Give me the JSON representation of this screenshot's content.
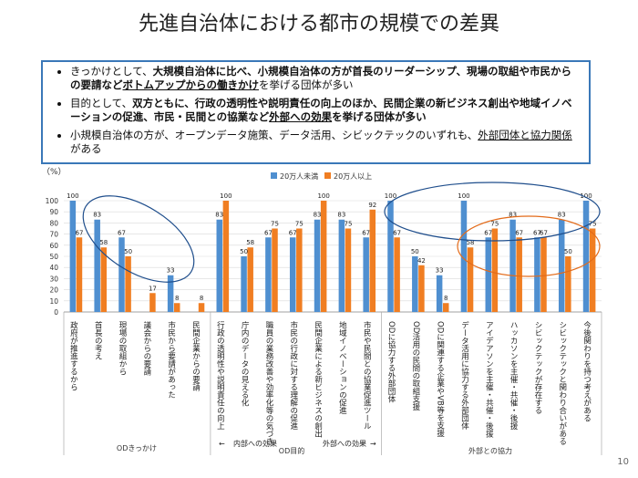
{
  "page": {
    "title": "先進自治体における都市の規模での差異",
    "page_number": "10"
  },
  "summary": {
    "items": [
      {
        "parts": [
          {
            "text": "きっかけとして、",
            "style": ""
          },
          {
            "text": "大規模自治体に比べ、小規模自治体の方が首長のリーダーシップ、現場の取組や市民からの要請など",
            "style": "b"
          },
          {
            "text": "ボトムアップからの働きかけ",
            "style": "b u"
          },
          {
            "text": "を挙げる団体が多い",
            "style": ""
          }
        ]
      },
      {
        "parts": [
          {
            "text": "目的として、",
            "style": ""
          },
          {
            "text": "双方ともに、行政の透明性や説明責任の向上のほか、民間企業の新ビジネス創出や地域イノベーションの促進、市民・民間との協業など",
            "style": "b"
          },
          {
            "text": "外部への効果",
            "style": "b u"
          },
          {
            "text": "を挙げる団体が多い",
            "style": "b"
          }
        ]
      },
      {
        "parts": [
          {
            "text": "小規模自治体の方が、オープンデータ施策、データ活用、シビックテックのいずれも、",
            "style": ""
          },
          {
            "text": "外部団体と協力関係",
            "style": "u"
          },
          {
            "text": "がある",
            "style": ""
          }
        ]
      }
    ]
  },
  "chart_data": {
    "type": "bar",
    "y_unit_label": "（%）",
    "ylim": [
      0,
      100
    ],
    "yticks": [
      "0",
      "10",
      "20",
      "30",
      "40",
      "50",
      "60",
      "70",
      "80",
      "90",
      "100"
    ],
    "grid": true,
    "legend_position": "top-center",
    "colors": {
      "small": "#4f8fd0",
      "large": "#f07e22",
      "blue_ellipse": "#1f4e8c",
      "orange_ellipse": "#e36b1a"
    },
    "series": [
      {
        "name": "20万人未満",
        "values": [
          100,
          83,
          67,
          0,
          33,
          0,
          83,
          50,
          67,
          67,
          83,
          83,
          67,
          100,
          50,
          33,
          100,
          67,
          83,
          67,
          83,
          100
        ]
      },
      {
        "name": "20万人以上",
        "values": [
          67,
          58,
          50,
          17,
          8,
          8,
          100,
          58,
          75,
          75,
          100,
          75,
          92,
          67,
          42,
          8,
          58,
          75,
          67,
          67,
          50,
          75
        ]
      }
    ],
    "value_labels": [
      [
        "100",
        "67"
      ],
      [
        "83",
        "58"
      ],
      [
        "67",
        "50"
      ],
      [
        "",
        "17"
      ],
      [
        "33",
        "8"
      ],
      [
        "",
        "8"
      ],
      [
        "83",
        "100"
      ],
      [
        "50",
        "58"
      ],
      [
        "67",
        "75"
      ],
      [
        "67",
        "75"
      ],
      [
        "83",
        "100"
      ],
      [
        "83",
        "75"
      ],
      [
        "67",
        "92"
      ],
      [
        "100",
        "67"
      ],
      [
        "50",
        "42"
      ],
      [
        "33",
        "8"
      ],
      [
        "100",
        "58"
      ],
      [
        "67",
        "75"
      ],
      [
        "83",
        "67"
      ],
      [
        "67",
        "67"
      ],
      [
        "83",
        "50"
      ],
      [
        "100",
        "75"
      ]
    ],
    "categories": [
      "政府が推進するから",
      "首長の考え",
      "現場の取組から",
      "議会からの要請",
      "市民から要請があった",
      "民間企業からの要請",
      "行政の透明性や説明責任の向上",
      "庁内のデータの見える化",
      "職員の業務改善や効率化等の気づき",
      "市民の行政に対する理解の促進",
      "民間企業による新ビジネスの創出",
      "地域イノベーションの促進",
      "市民や民間との協業促進ツール",
      "ODに協力する外部団体",
      "OD活用の民間の取組支援",
      "ODに関連する企業やVB等を支援",
      "データ活用に協力する外部団体",
      "アイデアソンを主催・共催・後援",
      "ハッカソンを主催・共催・後援",
      "シビックテックが存在する",
      "シビックテックと関わり合いがある",
      "今後関わりを持つ考えがある"
    ],
    "groups": {
      "trigger": "ODきっかけ",
      "purpose": "OD目的",
      "internal": "内部への効果",
      "external": "外部への効果",
      "cooperation": "外部との協力"
    }
  }
}
